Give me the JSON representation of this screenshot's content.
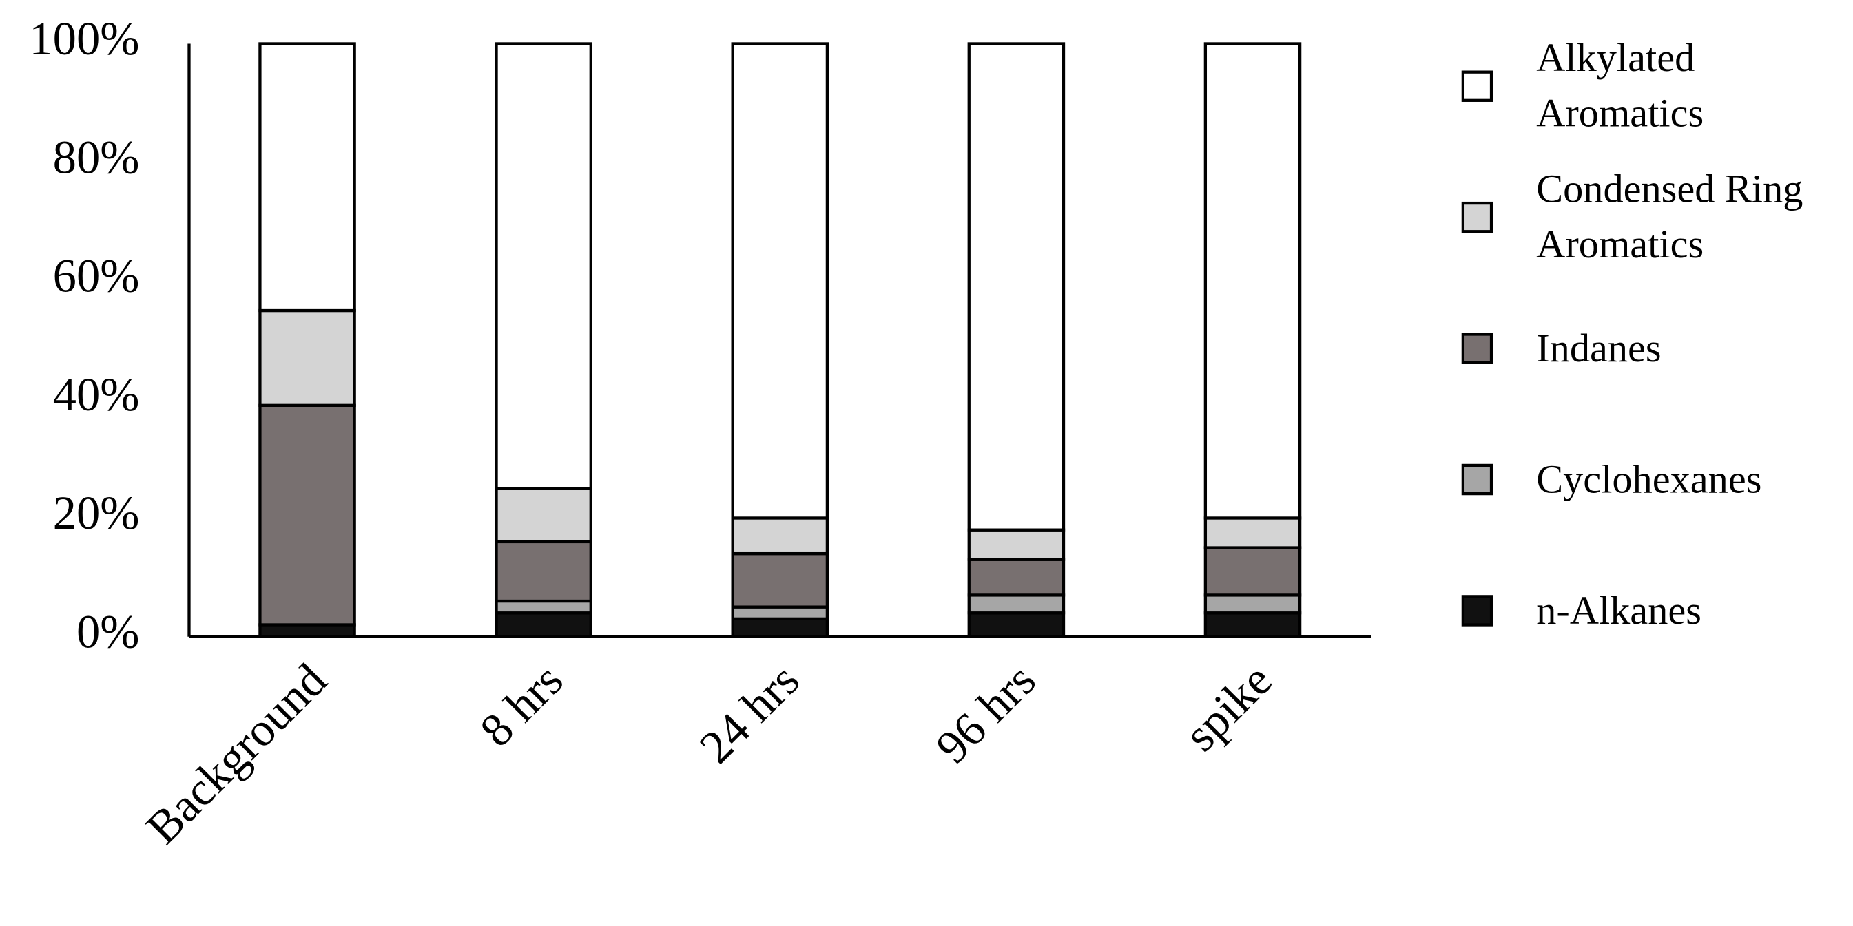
{
  "chart_data": {
    "type": "stacked_bar",
    "categories": [
      "Background",
      "8 hrs",
      "24 hrs",
      "96 hrs",
      "spike"
    ],
    "series": [
      {
        "name": "n-Alkanes",
        "color": "#111111",
        "values": [
          2,
          4,
          3,
          4,
          4
        ]
      },
      {
        "name": "Cyclohexanes",
        "color": "#a6a6a6",
        "values": [
          0,
          2,
          2,
          3,
          3
        ]
      },
      {
        "name": "Indanes",
        "color": "#787070",
        "values": [
          37,
          10,
          9,
          6,
          8
        ]
      },
      {
        "name": "Condensed Ring Aromatics",
        "color": "#d4d4d4",
        "values": [
          16,
          9,
          6,
          5,
          5
        ]
      },
      {
        "name": "Alkylated Aromatics",
        "color": "#ffffff",
        "values": [
          45,
          75,
          80,
          82,
          80
        ]
      }
    ],
    "ylim": [
      0,
      100
    ],
    "yticks": [
      {
        "value": 0,
        "label": "0%"
      },
      {
        "value": 20,
        "label": "20%"
      },
      {
        "value": 40,
        "label": "40%"
      },
      {
        "value": 60,
        "label": "60%"
      },
      {
        "value": 80,
        "label": "80%"
      },
      {
        "value": 100,
        "label": "100%"
      }
    ],
    "grid": false,
    "legend": "right"
  }
}
